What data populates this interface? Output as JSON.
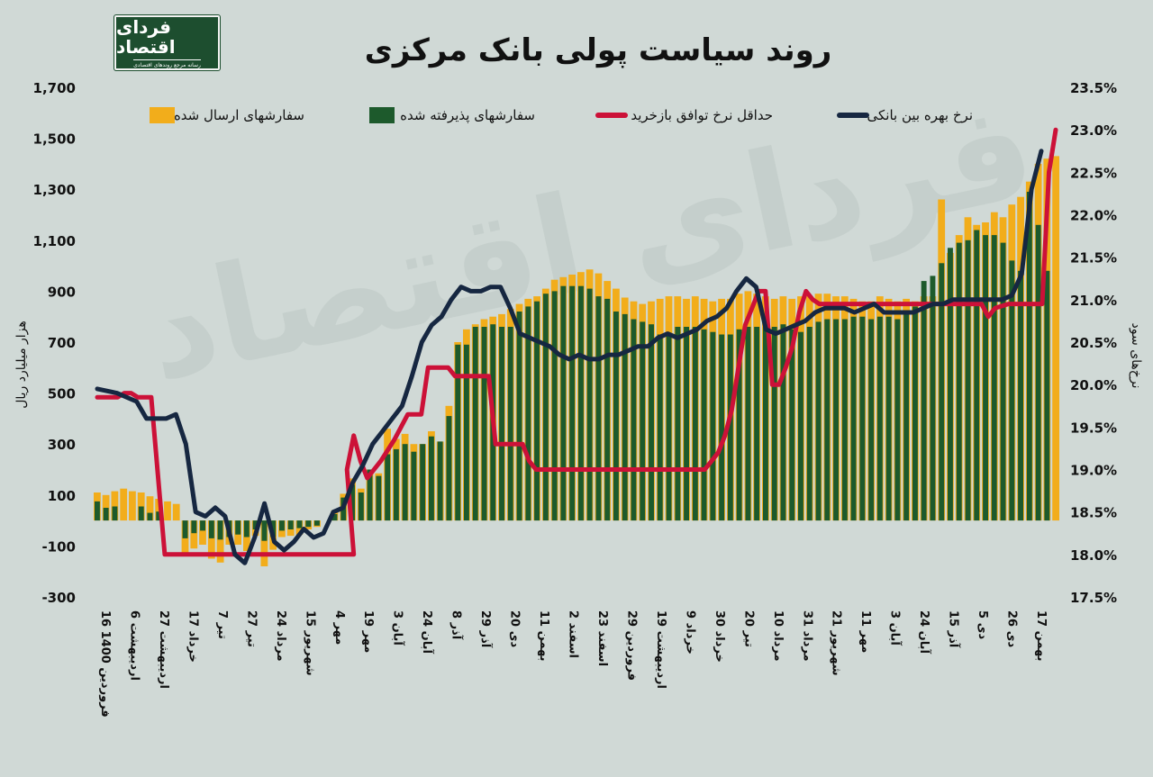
{
  "header": {
    "title": "روند سیاست پولی بانک مرکزی",
    "logo_main": "فردای اقتصاد",
    "logo_sub": "رسانه مرجع روندهای اقتصادی",
    "watermark": "فردای اقتصاد"
  },
  "colors": {
    "background": "#d0d9d6",
    "sent_orders": "#f2ad1b",
    "accepted_orders": "#1d5a2c",
    "repo_rate": "#cc1138",
    "interbank_rate": "#162741"
  },
  "chart_data": {
    "type": "bar",
    "title": "روند سیاست پولی بانک مرکزی",
    "ylabel_left": "هزار میلیارد ریال",
    "ylabel_right": "نرخ‌های سود",
    "ylim_left": [
      -300,
      1700
    ],
    "ylim_right": [
      17.5,
      23.5
    ],
    "yticks_left": [
      "1,700",
      "1,500",
      "1,300",
      "1,100",
      "900",
      "700",
      "500",
      "300",
      "100",
      "-100",
      "-300"
    ],
    "yticks_right": [
      "23.5%",
      "23.0%",
      "22.5%",
      "22.0%",
      "21.5%",
      "21.0%",
      "20.5%",
      "20.0%",
      "19.5%",
      "19.0%",
      "18.5%",
      "18.0%",
      "17.5%"
    ],
    "xticks": [
      "16 فروردین 1400",
      "6 اردیبهشت",
      "27 اردیبهشت",
      "17 خرداد",
      "7 تیر",
      "27 تیر",
      "24 مرداد",
      "15 شهریور",
      "4 مهر",
      "19 مهر",
      "3 آبان",
      "24 آبان",
      "8 آذر",
      "29 آذر",
      "20 دی",
      "11 بهمن",
      "2 اسفند",
      "23 اسفند",
      "29 فروردین",
      "19 اردیبهشت",
      "9 خرداد",
      "30 خرداد",
      "20 تیر",
      "10 مرداد",
      "31 مرداد",
      "21 شهریور",
      "11 مهر",
      "3 آبان",
      "24 آبان",
      "15 آذر",
      "5 دی",
      "26 دی",
      "17 بهمن"
    ],
    "legend_placement": "top",
    "grid": false,
    "series": [
      {
        "name": "سفارشهای ارسال شده",
        "kind": "bar",
        "values": [
          110,
          100,
          115,
          125,
          115,
          110,
          95,
          85,
          75,
          65,
          -125,
          -110,
          -95,
          -150,
          -165,
          -95,
          -95,
          -120,
          -60,
          -180,
          -115,
          -65,
          -60,
          -55,
          -35,
          -25,
          0,
          40,
          105,
          165,
          125,
          200,
          185,
          360,
          320,
          340,
          300,
          300,
          350,
          310,
          450,
          700,
          750,
          770,
          790,
          800,
          810,
          830,
          850,
          870,
          880,
          910,
          945,
          955,
          965,
          975,
          985,
          970,
          940,
          910,
          875,
          860,
          850,
          860,
          870,
          880,
          880,
          870,
          880,
          870,
          860,
          870,
          870,
          890,
          900,
          890,
          880,
          870,
          880,
          870,
          880,
          880,
          890,
          890,
          880,
          880,
          870,
          860,
          860,
          880,
          870,
          860,
          870,
          860,
          880,
          880,
          1260,
          1050,
          1120,
          1190,
          1160,
          1170,
          1210,
          1190,
          1240,
          1270,
          1330,
          1400,
          1420,
          1430
        ],
        "accepted": [
          75,
          50,
          55,
          0,
          0,
          55,
          30,
          35,
          0,
          0,
          -70,
          -50,
          -40,
          -70,
          -75,
          -65,
          -55,
          -65,
          -35,
          -80,
          -65,
          -40,
          -35,
          -30,
          -25,
          -20,
          0,
          25,
          90,
          140,
          110,
          200,
          175,
          260,
          280,
          300,
          270,
          300,
          330,
          310,
          410,
          690,
          690,
          760,
          760,
          770,
          760,
          760,
          820,
          840,
          860,
          890,
          900,
          920,
          920,
          920,
          910,
          880,
          870,
          820,
          810,
          790,
          780,
          770,
          730,
          730,
          760,
          760,
          760,
          750,
          740,
          730,
          730,
          750,
          760,
          760,
          770,
          760,
          770,
          750,
          740,
          760,
          780,
          790,
          790,
          790,
          800,
          800,
          790,
          800,
          800,
          790,
          820,
          840,
          940,
          960,
          1010,
          1070,
          1090,
          1100,
          1140,
          1120,
          1120,
          1090,
          1020,
          980,
          1290,
          1160,
          980
        ]
      },
      {
        "name": "سفارشهای پذیرفته شده",
        "kind": "bar"
      },
      {
        "name": "حداقل نرخ توافق بازخرید",
        "kind": "line",
        "points": [
          [
            0,
            19.85
          ],
          [
            3,
            19.85
          ],
          [
            4,
            19.9
          ],
          [
            5,
            19.9
          ],
          [
            6,
            19.85
          ],
          [
            8,
            19.85
          ],
          [
            10,
            18.0
          ],
          [
            11,
            18.0
          ],
          [
            38,
            18.0
          ],
          [
            37,
            19.0
          ],
          [
            38,
            19.4
          ],
          [
            39,
            19.1
          ],
          [
            40,
            18.9
          ],
          [
            41,
            19.0
          ],
          [
            42,
            19.1
          ],
          [
            44,
            19.35
          ],
          [
            46,
            19.65
          ],
          [
            48,
            19.65
          ],
          [
            49,
            20.2
          ],
          [
            52,
            20.2
          ],
          [
            53,
            20.1
          ],
          [
            58,
            20.1
          ],
          [
            59,
            19.3
          ],
          [
            63,
            19.3
          ],
          [
            64,
            19.1
          ],
          [
            65,
            19.0
          ],
          [
            90,
            19.0
          ],
          [
            91,
            19.1
          ],
          [
            92,
            19.2
          ],
          [
            93,
            19.4
          ],
          [
            94,
            19.7
          ],
          [
            95,
            20.2
          ],
          [
            96,
            20.7
          ],
          [
            97,
            20.9
          ],
          [
            98,
            21.1
          ],
          [
            99,
            21.1
          ],
          [
            100,
            20.0
          ],
          [
            101,
            20.0
          ],
          [
            102,
            20.2
          ],
          [
            103,
            20.45
          ],
          [
            104,
            20.85
          ],
          [
            105,
            21.1
          ],
          [
            106,
            21.0
          ],
          [
            107,
            20.95
          ],
          [
            131,
            20.95
          ],
          [
            132,
            20.8
          ],
          [
            133,
            20.9
          ],
          [
            135,
            20.95
          ],
          [
            140,
            20.95
          ],
          [
            141,
            22.5
          ],
          [
            142,
            23.0
          ]
        ]
      },
      {
        "name": "نرخ بهره بین بانکی",
        "kind": "line",
        "points": [
          [
            0,
            19.95
          ],
          [
            2,
            19.9
          ],
          [
            4,
            19.8
          ],
          [
            5,
            19.6
          ],
          [
            7,
            19.6
          ],
          [
            8,
            19.65
          ],
          [
            9,
            19.3
          ],
          [
            10,
            18.5
          ],
          [
            11,
            18.45
          ],
          [
            12,
            18.55
          ],
          [
            13,
            18.45
          ],
          [
            14,
            18.0
          ],
          [
            15,
            17.9
          ],
          [
            16,
            18.2
          ],
          [
            17,
            18.6
          ],
          [
            18,
            18.15
          ],
          [
            19,
            18.05
          ],
          [
            20,
            18.15
          ],
          [
            21,
            18.3
          ],
          [
            22,
            18.2
          ],
          [
            23,
            18.25
          ],
          [
            24,
            18.5
          ],
          [
            25,
            18.55
          ],
          [
            26,
            18.85
          ],
          [
            27,
            19.05
          ],
          [
            28,
            19.3
          ],
          [
            29,
            19.45
          ],
          [
            30,
            19.6
          ],
          [
            31,
            19.75
          ],
          [
            32,
            20.1
          ],
          [
            33,
            20.5
          ],
          [
            34,
            20.7
          ],
          [
            35,
            20.8
          ],
          [
            36,
            21.0
          ],
          [
            37,
            21.15
          ],
          [
            38,
            21.1
          ],
          [
            39,
            21.1
          ],
          [
            40,
            21.15
          ],
          [
            41,
            21.15
          ],
          [
            42,
            20.9
          ],
          [
            43,
            20.6
          ],
          [
            44,
            20.55
          ],
          [
            45,
            20.5
          ],
          [
            46,
            20.45
          ],
          [
            47,
            20.35
          ],
          [
            48,
            20.3
          ],
          [
            49,
            20.35
          ],
          [
            50,
            20.3
          ],
          [
            51,
            20.3
          ],
          [
            52,
            20.35
          ],
          [
            53,
            20.35
          ],
          [
            54,
            20.4
          ],
          [
            55,
            20.45
          ],
          [
            56,
            20.45
          ],
          [
            57,
            20.55
          ],
          [
            58,
            20.6
          ],
          [
            59,
            20.55
          ],
          [
            60,
            20.6
          ],
          [
            61,
            20.65
          ],
          [
            62,
            20.75
          ],
          [
            63,
            20.8
          ],
          [
            64,
            20.9
          ],
          [
            65,
            21.1
          ],
          [
            66,
            21.25
          ],
          [
            67,
            21.15
          ],
          [
            68,
            20.65
          ],
          [
            69,
            20.6
          ],
          [
            70,
            20.65
          ],
          [
            71,
            20.7
          ],
          [
            72,
            20.75
          ],
          [
            73,
            20.85
          ],
          [
            74,
            20.9
          ],
          [
            75,
            20.9
          ],
          [
            76,
            20.9
          ],
          [
            77,
            20.85
          ],
          [
            78,
            20.9
          ],
          [
            79,
            20.95
          ],
          [
            80,
            20.85
          ],
          [
            81,
            20.85
          ],
          [
            82,
            20.85
          ],
          [
            83,
            20.85
          ],
          [
            84,
            20.9
          ],
          [
            85,
            20.95
          ],
          [
            86,
            20.95
          ],
          [
            87,
            21.0
          ],
          [
            88,
            21.0
          ],
          [
            89,
            21.0
          ],
          [
            90,
            21.0
          ],
          [
            91,
            21.0
          ],
          [
            92,
            21.0
          ],
          [
            93,
            21.05
          ],
          [
            94,
            21.3
          ],
          [
            95,
            22.3
          ],
          [
            96,
            22.75
          ]
        ]
      }
    ]
  }
}
